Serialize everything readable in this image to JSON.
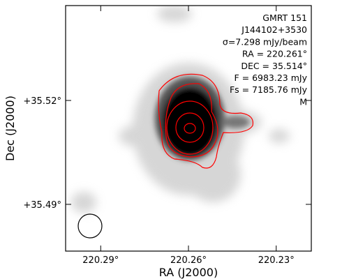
{
  "chart_data": {
    "type": "image",
    "xlabel": "RA (J2000)",
    "ylabel": "Dec (J2000)",
    "xlim": [
      220.302,
      220.218
    ],
    "ylim": [
      35.4765,
      35.5474
    ],
    "xticks": [
      {
        "value": 220.29,
        "label": "220.29°"
      },
      {
        "value": 220.26,
        "label": "220.26°"
      },
      {
        "value": 220.23,
        "label": "220.23°"
      }
    ],
    "yticks": [
      {
        "value": 35.49,
        "label": "+35.49°"
      },
      {
        "value": 35.52,
        "label": "+35.52°"
      }
    ],
    "annotations": [
      "GMRT 151",
      "J144102+3530",
      "σ=7.298 mJy/beam",
      "RA = 220.261°",
      "DEC = 35.514°",
      "F = 6983.23 mJy",
      "Fs = 7185.76 mJy",
      "M"
    ]
  }
}
